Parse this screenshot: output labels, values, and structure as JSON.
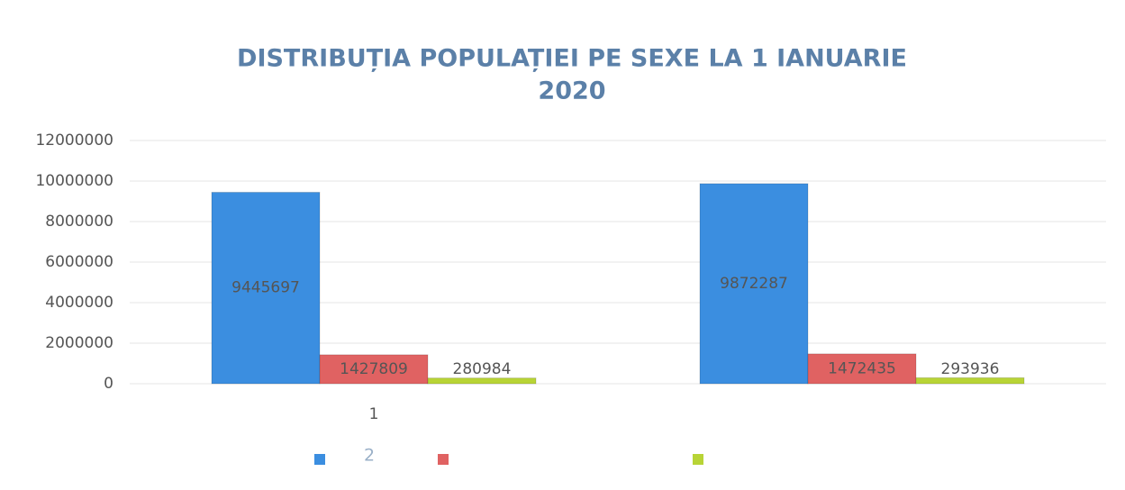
{
  "chart_data": {
    "type": "bar",
    "title": [
      "DISTRIBUȚIA POPULAȚIEI PE SEXE LA 1 IANUARIE",
      "2020"
    ],
    "categories": [
      "1",
      "2"
    ],
    "series": [
      {
        "color": "#3b8ee0",
        "values": [
          9445697,
          9872287
        ]
      },
      {
        "color": "#e06262",
        "values": [
          1427809,
          1472435
        ]
      },
      {
        "color": "#b8d436",
        "values": [
          280984,
          293936
        ]
      }
    ],
    "ylim": [
      0,
      12000000
    ],
    "yticks": [
      0,
      2000000,
      4000000,
      6000000,
      8000000,
      10000000,
      12000000
    ],
    "grid": true,
    "legend": "bottom"
  }
}
